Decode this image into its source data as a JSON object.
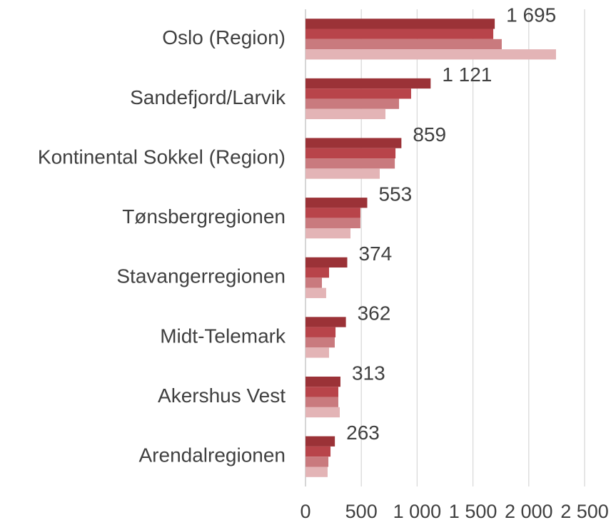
{
  "chart_data": {
    "type": "bar",
    "orientation": "horizontal",
    "categories": [
      "Oslo (Region)",
      "Sandefjord/Larvik",
      "Kontinental Sokkel (Region)",
      "Tønsbergregionen",
      "Stavangerregionen",
      "Midt-Telemark",
      "Akershus Vest",
      "Arendalregionen"
    ],
    "series": [
      {
        "color": "#9b3237",
        "values": [
          1695,
          1121,
          859,
          553,
          374,
          362,
          313,
          263
        ],
        "value_labels": [
          "1 695",
          "1 121",
          "859",
          "553",
          "374",
          "362",
          "313",
          "263"
        ]
      },
      {
        "color": "#b8444a",
        "values": [
          1682,
          946,
          806,
          492,
          211,
          269,
          294,
          224
        ]
      },
      {
        "color": "#c97a7e",
        "values": [
          1758,
          838,
          800,
          492,
          147,
          262,
          294,
          205
        ]
      },
      {
        "color": "#e3b4b6",
        "values": [
          2244,
          716,
          665,
          403,
          185,
          211,
          307,
          198
        ]
      }
    ],
    "xlim": [
      0,
      2500
    ],
    "xticks": [
      0,
      500,
      {
        "value": 1000,
        "label": "1 000"
      },
      {
        "value": 1500,
        "label": "1 500"
      },
      {
        "value": 2000,
        "label": "2 000"
      },
      {
        "value": 2500,
        "label": "2 500"
      }
    ],
    "grid": true
  }
}
